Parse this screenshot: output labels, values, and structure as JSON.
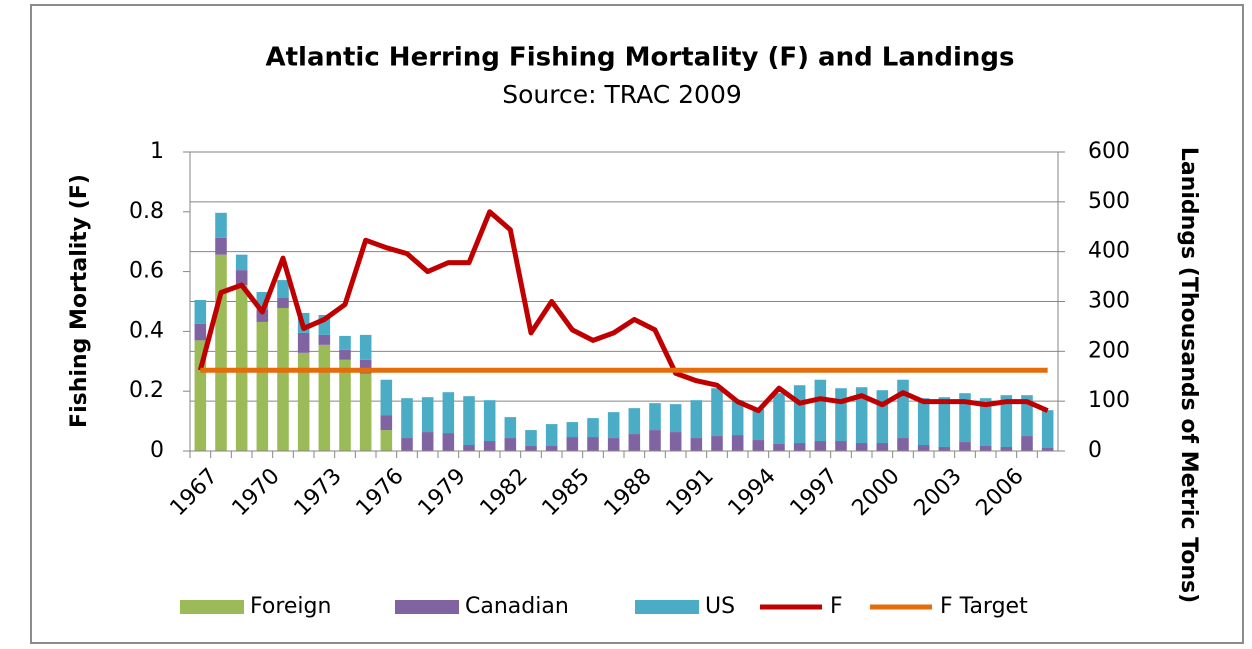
{
  "chart_data": {
    "type": "combo",
    "title": "Atlantic Herring Fishing Mortality (F) and Landings",
    "subtitle": "Source: TRAC 2009",
    "y_label": "Fishing Mortality (F)",
    "y2_label": "Lanidngs (Thousands of Metric Tons)",
    "categories": [
      "1967",
      null,
      null,
      "1970",
      null,
      null,
      "1973",
      null,
      null,
      "1976",
      null,
      null,
      "1979",
      null,
      null,
      "1982",
      null,
      null,
      "1985",
      null,
      null,
      "1988",
      null,
      null,
      "1991",
      null,
      null,
      "1994",
      null,
      null,
      "1997",
      null,
      null,
      "2000",
      null,
      null,
      "2003",
      null,
      null,
      "2006",
      null,
      null
    ],
    "ylim": [
      0,
      1
    ],
    "yticks": [
      0,
      0.2,
      0.4,
      0.6,
      0.8,
      1
    ],
    "y2lim": [
      0,
      600
    ],
    "y2ticks": [
      0,
      100,
      200,
      300,
      400,
      500,
      600
    ],
    "grid": true,
    "legend": "bottom",
    "series": [
      {
        "name": "Foreign",
        "type": "bar",
        "axis": "y2",
        "color": "#9bbb59",
        "values": [
          222,
          394,
          333,
          259,
          287,
          197,
          213,
          183,
          155,
          42,
          0,
          0,
          0,
          0,
          0,
          0,
          0,
          0,
          0,
          0,
          0,
          0,
          0,
          0,
          0,
          0,
          0,
          0,
          0,
          0,
          0,
          0,
          0,
          0,
          0,
          0,
          0,
          0,
          0,
          0,
          0,
          0
        ]
      },
      {
        "name": "Canadian",
        "type": "bar",
        "axis": "y2",
        "color": "#8064a2",
        "values": [
          33,
          34,
          30,
          24,
          20,
          40,
          20,
          20,
          28,
          30,
          26,
          38,
          36,
          12,
          20,
          26,
          10,
          10,
          28,
          28,
          26,
          34,
          42,
          38,
          26,
          30,
          32,
          22,
          14,
          16,
          20,
          20,
          16,
          16,
          26,
          12,
          8,
          18,
          10,
          8,
          30,
          6
        ]
      },
      {
        "name": "US",
        "type": "bar",
        "axis": "y2",
        "color": "#4bacc6",
        "values": [
          48,
          50,
          31,
          36,
          36,
          40,
          40,
          28,
          50,
          71,
          80,
          70,
          82,
          98,
          82,
          42,
          32,
          44,
          30,
          38,
          52,
          52,
          54,
          56,
          76,
          96,
          70,
          62,
          102,
          116,
          123,
          106,
          112,
          106,
          117,
          94,
          100,
          98,
          96,
          104,
          82,
          76
        ]
      },
      {
        "name": "F",
        "type": "line",
        "axis": "y",
        "color": "#c00000",
        "values": [
          0.27,
          0.53,
          0.555,
          0.465,
          0.645,
          0.41,
          0.44,
          0.49,
          0.705,
          0.68,
          0.66,
          0.6,
          0.63,
          0.63,
          0.8,
          0.74,
          0.395,
          0.5,
          0.405,
          0.37,
          0.395,
          0.44,
          0.405,
          0.26,
          0.235,
          0.22,
          0.165,
          0.135,
          0.21,
          0.16,
          0.175,
          0.165,
          0.185,
          0.155,
          0.195,
          0.165,
          0.165,
          0.165,
          0.155,
          0.165,
          0.165,
          0.135
        ]
      },
      {
        "name": "F Target",
        "type": "line",
        "axis": "y",
        "color": "#e46c0a",
        "values": [
          0.27,
          0.27,
          0.27,
          0.27,
          0.27,
          0.27,
          0.27,
          0.27,
          0.27,
          0.27,
          0.27,
          0.27,
          0.27,
          0.27,
          0.27,
          0.27,
          0.27,
          0.27,
          0.27,
          0.27,
          0.27,
          0.27,
          0.27,
          0.27,
          0.27,
          0.27,
          0.27,
          0.27,
          0.27,
          0.27,
          0.27,
          0.27,
          0.27,
          0.27,
          0.27,
          0.27,
          0.27,
          0.27,
          0.27,
          0.27,
          0.27,
          0.27
        ]
      }
    ]
  }
}
